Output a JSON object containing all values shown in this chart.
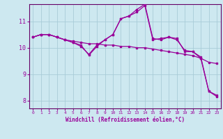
{
  "background_color": "#cde8f0",
  "grid_color": "#a8ccd8",
  "line_color": "#990099",
  "spine_color": "#660066",
  "xlabel": "Windchill (Refroidissement éolien,°C)",
  "xlim": [
    -0.5,
    23.5
  ],
  "ylim": [
    7.7,
    11.65
  ],
  "yticks": [
    8,
    9,
    10,
    11
  ],
  "xticks": [
    0,
    1,
    2,
    3,
    4,
    5,
    6,
    7,
    8,
    9,
    10,
    11,
    12,
    13,
    14,
    15,
    16,
    17,
    18,
    19,
    20,
    21,
    22,
    23
  ],
  "line1_x": [
    0,
    1,
    2,
    3,
    4,
    5,
    6,
    7,
    8,
    9,
    10,
    11,
    12,
    13,
    14,
    15,
    16,
    17,
    18,
    19,
    20,
    21,
    22,
    23
  ],
  "line1_y": [
    10.4,
    10.5,
    10.5,
    10.4,
    10.3,
    10.25,
    10.2,
    10.15,
    10.15,
    10.1,
    10.1,
    10.05,
    10.05,
    10.0,
    10.0,
    9.95,
    9.9,
    9.85,
    9.8,
    9.75,
    9.7,
    9.6,
    9.45,
    9.4
  ],
  "line2_x": [
    0,
    1,
    2,
    3,
    4,
    5,
    6,
    7,
    8,
    9,
    10,
    11,
    12,
    13,
    14,
    15,
    16,
    17,
    18,
    19,
    20,
    21,
    22,
    23
  ],
  "line2_y": [
    10.4,
    10.5,
    10.5,
    10.4,
    10.3,
    10.2,
    10.1,
    9.72,
    10.05,
    10.3,
    10.5,
    11.1,
    11.2,
    11.35,
    11.6,
    10.3,
    10.35,
    10.4,
    10.35,
    9.85,
    9.85,
    9.6,
    8.35,
    8.15
  ],
  "line3_x": [
    0,
    1,
    2,
    3,
    4,
    5,
    6,
    7,
    8,
    9,
    10,
    11,
    12,
    13,
    14,
    15,
    16,
    17,
    18,
    19,
    20,
    21,
    22,
    23
  ],
  "line3_y": [
    10.4,
    10.5,
    10.5,
    10.4,
    10.3,
    10.2,
    10.05,
    9.75,
    10.1,
    10.3,
    10.5,
    11.1,
    11.2,
    11.45,
    11.65,
    10.35,
    10.3,
    10.4,
    10.3,
    9.9,
    9.85,
    9.65,
    8.35,
    8.2
  ]
}
